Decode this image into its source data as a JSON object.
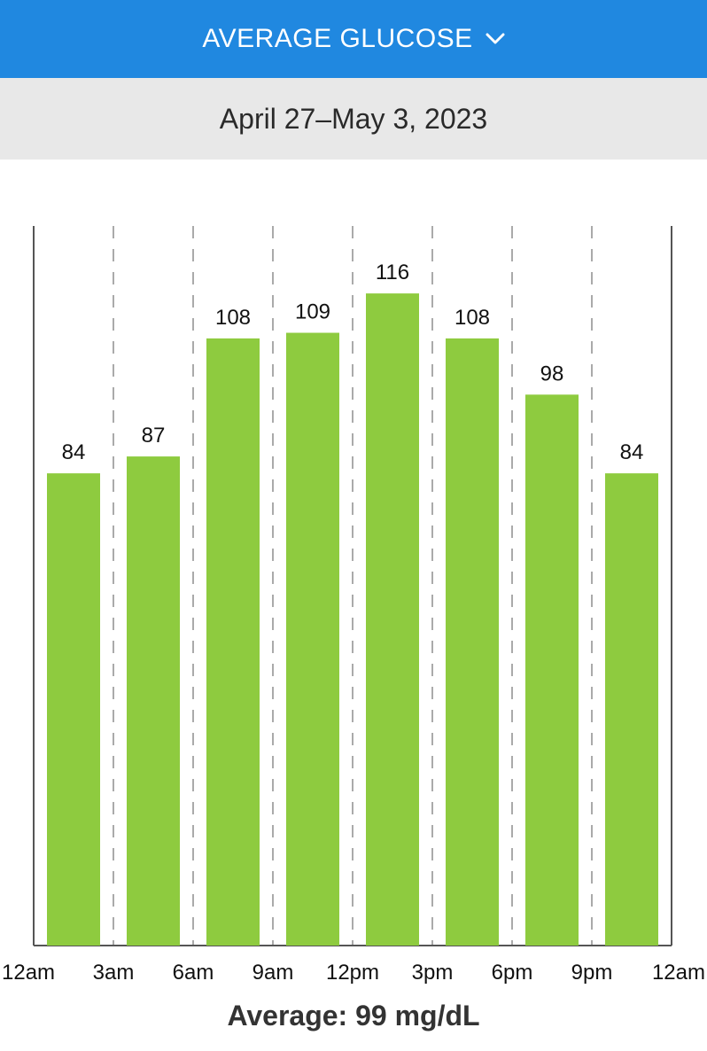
{
  "header": {
    "title": "AVERAGE GLUCOSE",
    "chevron_icon": "chevron-down-icon",
    "background": "#2088e0"
  },
  "date_range": "April 27–May 3, 2023",
  "chart_data": {
    "type": "bar",
    "tick_labels": [
      "12am",
      "3am",
      "6am",
      "9am",
      "12pm",
      "3pm",
      "6pm",
      "9pm",
      "12am"
    ],
    "categories": [
      "12am-3am",
      "3am-6am",
      "6am-9am",
      "9am-12pm",
      "12pm-3pm",
      "3pm-6pm",
      "6pm-9pm",
      "9pm-12am"
    ],
    "values": [
      84,
      87,
      108,
      109,
      116,
      108,
      98,
      84
    ],
    "title": "",
    "xlabel": "",
    "ylabel": "",
    "ylim": [
      0,
      128
    ],
    "grid": "vertical dashed",
    "bar_color": "#8ecb3f"
  },
  "average_label": "Average: 99 mg/dL"
}
